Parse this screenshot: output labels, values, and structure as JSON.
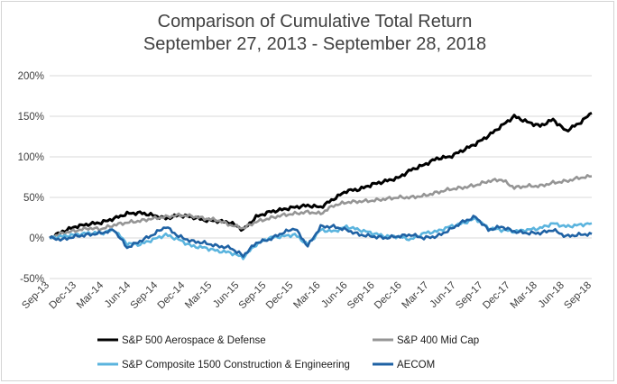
{
  "chart_data": {
    "type": "line",
    "title": "Comparison of Cumulative Total Return",
    "subtitle": "September 27, 2013 - September 28, 2018",
    "xlabel": "",
    "ylabel": "",
    "ylim": [
      -50,
      200
    ],
    "yticks": [
      -50,
      0,
      50,
      100,
      150,
      200
    ],
    "ytick_labels": [
      "-50%",
      "0%",
      "50%",
      "100%",
      "150%",
      "200%"
    ],
    "x_labels": [
      "Sep-13",
      "Dec-13",
      "Mar-14",
      "Jun-14",
      "Sep-14",
      "Dec-14",
      "Mar-15",
      "Jun-15",
      "Sep-15",
      "Dec-15",
      "Mar-16",
      "Jun-16",
      "Sep-16",
      "Dec-16",
      "Mar-17",
      "Jun-17",
      "Sep-17",
      "Dec-17",
      "Mar-18",
      "Jun-18",
      "Sep-18"
    ],
    "grid": true,
    "legend_position": "bottom",
    "series": [
      {
        "name": "S&P 500 Aerospace & Defense",
        "color": "#000000",
        "values": [
          0,
          8,
          14,
          17,
          19,
          24,
          30,
          31,
          28,
          24,
          28,
          26,
          22,
          21,
          19,
          10,
          26,
          32,
          35,
          38,
          40,
          38,
          48,
          58,
          60,
          66,
          70,
          74,
          84,
          90,
          98,
          100,
          108,
          116,
          126,
          138,
          150,
          143,
          138,
          146,
          132,
          141,
          154
        ]
      },
      {
        "name": "S&P 400 Mid Cap",
        "color": "#959595",
        "values": [
          0,
          6,
          9,
          12,
          11,
          16,
          19,
          21,
          24,
          26,
          28,
          27,
          24,
          22,
          16,
          12,
          20,
          24,
          28,
          30,
          32,
          30,
          40,
          44,
          45,
          46,
          48,
          50,
          50,
          52,
          56,
          60,
          62,
          65,
          70,
          72,
          62,
          64,
          64,
          68,
          70,
          74,
          76
        ]
      },
      {
        "name": "S&P Composite 1500 Construction & Engineering",
        "color": "#5bb4de",
        "values": [
          0,
          2,
          4,
          6,
          6,
          10,
          -7,
          -8,
          -2,
          4,
          -2,
          -10,
          -12,
          -16,
          -18,
          -24,
          -8,
          0,
          2,
          4,
          -8,
          10,
          8,
          14,
          10,
          6,
          2,
          2,
          -2,
          6,
          8,
          14,
          18,
          24,
          12,
          10,
          8,
          10,
          12,
          18,
          14,
          16,
          18
        ]
      },
      {
        "name": "AECOM",
        "color": "#1f62a4",
        "values": [
          0,
          -2,
          2,
          4,
          6,
          10,
          -12,
          -4,
          4,
          14,
          2,
          -4,
          -6,
          -10,
          -12,
          -22,
          -6,
          -2,
          6,
          12,
          -10,
          14,
          14,
          10,
          4,
          2,
          0,
          2,
          4,
          0,
          2,
          10,
          20,
          26,
          10,
          14,
          8,
          6,
          6,
          10,
          2,
          4,
          5
        ]
      }
    ]
  }
}
